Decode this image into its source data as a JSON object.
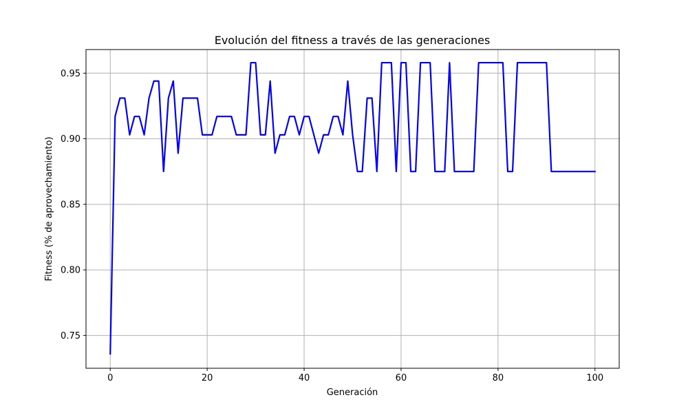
{
  "chart_data": {
    "type": "line",
    "title": "Evolución del fitness a través de las generaciones",
    "xlabel": "Generación",
    "ylabel": "Fitness (% de aprovechamiento)",
    "xlim": [
      -5,
      105
    ],
    "ylim": [
      0.725,
      0.968
    ],
    "xticks": [
      0,
      20,
      40,
      60,
      80,
      100
    ],
    "yticks": [
      0.75,
      0.8,
      0.85,
      0.9,
      0.95
    ],
    "ytick_labels": [
      "0.75",
      "0.80",
      "0.85",
      "0.90",
      "0.95"
    ],
    "grid": true,
    "line_color": "#0000ff",
    "grid_color": "#b0b0b0",
    "series": [
      {
        "x": [
          0,
          1,
          2,
          3,
          4,
          5,
          6,
          7,
          8,
          9,
          10,
          11,
          12,
          13,
          14,
          15,
          16,
          17,
          18,
          19,
          20,
          21,
          22,
          23,
          24,
          25,
          26,
          27,
          28,
          29,
          30,
          31,
          32,
          33,
          34,
          35,
          36,
          37,
          38,
          39,
          40,
          41,
          42,
          43,
          44,
          45,
          46,
          47,
          48,
          49,
          50,
          51,
          52,
          53,
          54,
          55,
          56,
          57,
          58,
          59,
          60,
          61,
          62,
          63,
          64,
          65,
          66,
          67,
          68,
          69,
          70,
          71,
          72,
          73,
          74,
          75,
          76,
          77,
          78,
          79,
          80,
          81,
          82,
          83,
          84,
          85,
          86,
          87,
          88,
          89,
          90,
          91,
          92,
          93,
          94,
          95,
          96,
          97,
          98,
          99,
          100
        ],
        "values": [
          0.736,
          0.917,
          0.931,
          0.931,
          0.903,
          0.917,
          0.917,
          0.903,
          0.931,
          0.944,
          0.944,
          0.875,
          0.931,
          0.944,
          0.889,
          0.931,
          0.931,
          0.931,
          0.931,
          0.903,
          0.903,
          0.903,
          0.917,
          0.917,
          0.917,
          0.917,
          0.903,
          0.903,
          0.903,
          0.958,
          0.958,
          0.903,
          0.903,
          0.944,
          0.889,
          0.903,
          0.903,
          0.917,
          0.917,
          0.903,
          0.917,
          0.917,
          0.903,
          0.889,
          0.903,
          0.903,
          0.917,
          0.917,
          0.903,
          0.944,
          0.903,
          0.875,
          0.875,
          0.931,
          0.931,
          0.875,
          0.958,
          0.958,
          0.958,
          0.875,
          0.958,
          0.958,
          0.875,
          0.875,
          0.958,
          0.958,
          0.958,
          0.875,
          0.875,
          0.875,
          0.958,
          0.875,
          0.875,
          0.875,
          0.875,
          0.875,
          0.958,
          0.958,
          0.958,
          0.958,
          0.958,
          0.958,
          0.875,
          0.875,
          0.958,
          0.958,
          0.958,
          0.958,
          0.958,
          0.958,
          0.958,
          0.875,
          0.875,
          0.875,
          0.875,
          0.875,
          0.875,
          0.875,
          0.875,
          0.875,
          0.875
        ]
      }
    ]
  }
}
